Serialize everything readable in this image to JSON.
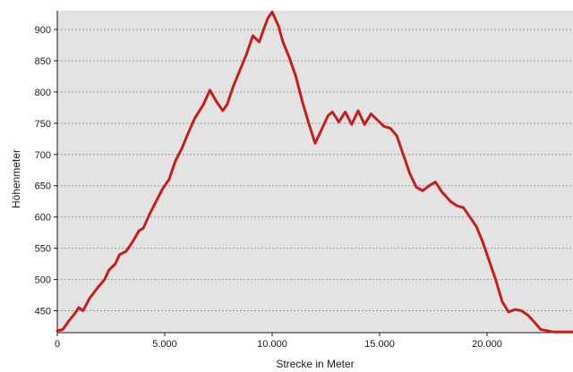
{
  "chart_data": {
    "type": "line",
    "title": "",
    "xlabel": "Strecke in Meter",
    "ylabel": "Höhenmeter",
    "xlim": [
      0,
      24000
    ],
    "ylim": [
      415,
      930
    ],
    "grid": true,
    "legend": "none",
    "x_ticks": [
      {
        "value": 0,
        "label": "0"
      },
      {
        "value": 5000,
        "label": "5.000"
      },
      {
        "value": 10000,
        "label": "10.000"
      },
      {
        "value": 15000,
        "label": "15.000"
      },
      {
        "value": 20000,
        "label": "20.000"
      }
    ],
    "y_ticks": [
      {
        "value": 450,
        "label": "450"
      },
      {
        "value": 500,
        "label": "500"
      },
      {
        "value": 550,
        "label": "550"
      },
      {
        "value": 600,
        "label": "600"
      },
      {
        "value": 650,
        "label": "650"
      },
      {
        "value": 700,
        "label": "700"
      },
      {
        "value": 750,
        "label": "750"
      },
      {
        "value": 800,
        "label": "800"
      },
      {
        "value": 850,
        "label": "850"
      },
      {
        "value": 900,
        "label": "900"
      }
    ],
    "colors": {
      "line": "#c41e1e",
      "plot_background": "#e3e3e3",
      "page_background": "#ffffff"
    },
    "series": [
      {
        "x": [
          0,
          250,
          500,
          800,
          1000,
          1200,
          1500,
          1900,
          2200,
          2400,
          2700,
          2900,
          3200,
          3500,
          3800,
          4000,
          4300,
          4600,
          4900,
          5200,
          5500,
          5800,
          6100,
          6400,
          6800,
          7100,
          7400,
          7700,
          7900,
          8200,
          8500,
          8800,
          9100,
          9400,
          9600,
          9800,
          10000,
          10300,
          10500,
          10800,
          11100,
          11400,
          11700,
          12000,
          12300,
          12600,
          12800,
          13100,
          13400,
          13700,
          14000,
          14300,
          14600,
          14900,
          15200,
          15500,
          15800,
          16100,
          16400,
          16700,
          17000,
          17300,
          17600,
          17900,
          18300,
          18600,
          18900,
          19200,
          19500,
          19800,
          20100,
          20400,
          20700,
          21000,
          21300,
          21600,
          21900,
          22200,
          22500,
          22800,
          23100,
          23400,
          23700,
          24000
        ],
        "y": [
          418,
          420,
          432,
          445,
          455,
          450,
          470,
          488,
          500,
          515,
          525,
          540,
          545,
          560,
          578,
          582,
          605,
          625,
          645,
          660,
          690,
          710,
          735,
          758,
          780,
          803,
          785,
          770,
          780,
          810,
          835,
          860,
          890,
          880,
          900,
          918,
          928,
          905,
          880,
          855,
          825,
          785,
          750,
          718,
          740,
          762,
          768,
          752,
          768,
          748,
          770,
          748,
          765,
          755,
          745,
          742,
          730,
          700,
          670,
          648,
          642,
          650,
          656,
          640,
          625,
          618,
          615,
          600,
          585,
          560,
          530,
          500,
          465,
          448,
          452,
          450,
          443,
          432,
          420,
          418,
          416,
          416,
          416,
          416
        ]
      }
    ]
  }
}
